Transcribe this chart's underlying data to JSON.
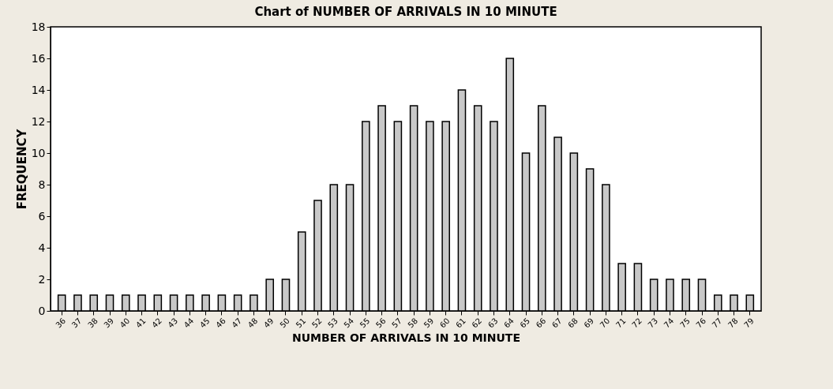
{
  "chart_data": {
    "type": "bar",
    "title": "Chart of NUMBER OF ARRIVALS IN 10 MINUTE",
    "xlabel": "NUMBER OF ARRIVALS IN 10 MINUTE",
    "ylabel": "FREQUENCY",
    "categories": [
      "36",
      "37",
      "38",
      "39",
      "40",
      "41",
      "42",
      "43",
      "44",
      "45",
      "46",
      "47",
      "48",
      "49",
      "50",
      "51",
      "52",
      "53",
      "54",
      "55",
      "56",
      "57",
      "58",
      "59",
      "60",
      "61",
      "62",
      "63",
      "64",
      "65",
      "66",
      "67",
      "68",
      "69",
      "70",
      "71",
      "72",
      "73",
      "74",
      "75",
      "76",
      "77",
      "78",
      "79"
    ],
    "values": [
      1,
      1,
      1,
      1,
      1,
      1,
      1,
      1,
      1,
      1,
      1,
      1,
      1,
      2,
      2,
      5,
      7,
      8,
      8,
      12,
      13,
      12,
      13,
      12,
      12,
      14,
      13,
      12,
      16,
      10,
      13,
      11,
      10,
      9,
      8,
      3,
      3,
      2,
      2,
      2,
      2,
      1,
      1,
      1
    ],
    "color": "#c8c8c8",
    "ylim": [
      0,
      18
    ],
    "yticks": [
      0,
      2,
      4,
      6,
      8,
      10,
      12,
      14,
      16,
      18
    ],
    "grid": false,
    "legend": false
  }
}
